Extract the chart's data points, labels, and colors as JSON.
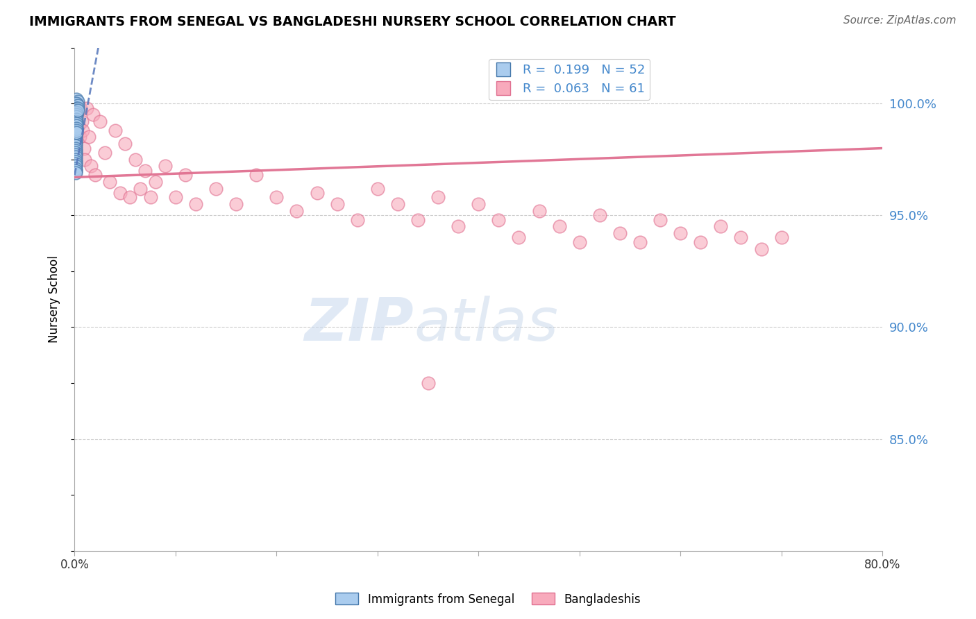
{
  "title": "IMMIGRANTS FROM SENEGAL VS BANGLADESHI NURSERY SCHOOL CORRELATION CHART",
  "source": "Source: ZipAtlas.com",
  "ylabel": "Nursery School",
  "xlim": [
    0.0,
    0.8
  ],
  "ylim": [
    0.8,
    1.025
  ],
  "ytick_values": [
    1.0,
    0.95,
    0.9,
    0.85
  ],
  "blue_face": "#aaccee",
  "blue_edge": "#4477aa",
  "pink_face": "#f8aabc",
  "pink_edge": "#e07090",
  "trend_blue": "#5577bb",
  "trend_pink": "#e07090",
  "watermark_color": "#dde8f5",
  "grid_color": "#cccccc",
  "right_label_color": "#4488cc",
  "blue_scatter_x": [
    0.002,
    0.001,
    0.003,
    0.001,
    0.002,
    0.001,
    0.003,
    0.001,
    0.002,
    0.001,
    0.001,
    0.002,
    0.001,
    0.001,
    0.003,
    0.002,
    0.001,
    0.001,
    0.002,
    0.001,
    0.001,
    0.001,
    0.002,
    0.001,
    0.002,
    0.001,
    0.001,
    0.002,
    0.001,
    0.003,
    0.001,
    0.001,
    0.002,
    0.001,
    0.001,
    0.002,
    0.001,
    0.001,
    0.001,
    0.001,
    0.002,
    0.001,
    0.001,
    0.001,
    0.002,
    0.001,
    0.001,
    0.002,
    0.001,
    0.001,
    0.001,
    0.001
  ],
  "blue_scatter_y": [
    1.002,
    1.0,
    1.001,
    0.999,
    1.0,
    0.998,
    0.999,
    0.997,
    0.998,
    0.996,
    0.997,
    0.997,
    0.996,
    0.995,
    0.998,
    0.996,
    0.994,
    0.993,
    0.995,
    0.992,
    0.991,
    0.99,
    0.994,
    0.989,
    0.993,
    0.988,
    0.987,
    0.992,
    0.986,
    0.997,
    0.985,
    0.984,
    0.991,
    0.983,
    0.982,
    0.99,
    0.981,
    0.98,
    0.979,
    0.978,
    0.989,
    0.977,
    0.976,
    0.975,
    0.988,
    0.974,
    0.973,
    0.987,
    0.972,
    0.971,
    0.97,
    0.969
  ],
  "pink_scatter_x": [
    0.001,
    0.002,
    0.003,
    0.004,
    0.005,
    0.006,
    0.007,
    0.008,
    0.009,
    0.01,
    0.012,
    0.014,
    0.016,
    0.018,
    0.02,
    0.025,
    0.03,
    0.035,
    0.04,
    0.045,
    0.05,
    0.055,
    0.06,
    0.065,
    0.07,
    0.075,
    0.08,
    0.09,
    0.1,
    0.11,
    0.12,
    0.14,
    0.16,
    0.18,
    0.2,
    0.22,
    0.24,
    0.26,
    0.28,
    0.3,
    0.32,
    0.34,
    0.36,
    0.38,
    0.4,
    0.42,
    0.44,
    0.46,
    0.48,
    0.5,
    0.52,
    0.54,
    0.56,
    0.58,
    0.6,
    0.62,
    0.64,
    0.66,
    0.68,
    0.7,
    0.35
  ],
  "pink_scatter_y": [
    0.97,
    0.995,
    1.0,
    0.99,
    0.985,
    0.998,
    0.992,
    0.988,
    0.98,
    0.975,
    0.998,
    0.985,
    0.972,
    0.995,
    0.968,
    0.992,
    0.978,
    0.965,
    0.988,
    0.96,
    0.982,
    0.958,
    0.975,
    0.962,
    0.97,
    0.958,
    0.965,
    0.972,
    0.958,
    0.968,
    0.955,
    0.962,
    0.955,
    0.968,
    0.958,
    0.952,
    0.96,
    0.955,
    0.948,
    0.962,
    0.955,
    0.948,
    0.958,
    0.945,
    0.955,
    0.948,
    0.94,
    0.952,
    0.945,
    0.938,
    0.95,
    0.942,
    0.938,
    0.948,
    0.942,
    0.938,
    0.945,
    0.94,
    0.935,
    0.94,
    0.875
  ],
  "pink_trend_x0": 0.0,
  "pink_trend_x1": 0.8,
  "pink_trend_y0": 0.967,
  "pink_trend_y1": 0.98,
  "blue_trend_x0": 0.0,
  "blue_trend_x1": 0.014,
  "blue_trend_y0": 0.968,
  "blue_trend_y1": 1.002
}
